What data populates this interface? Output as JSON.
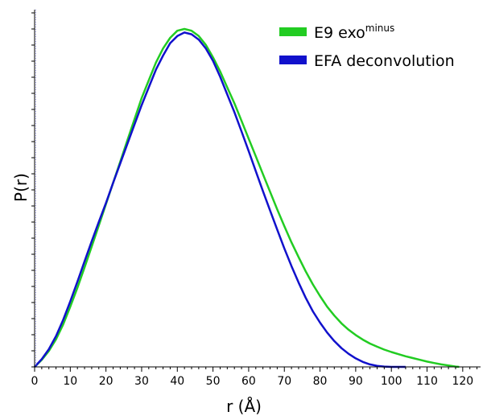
{
  "chart_data": {
    "type": "line",
    "title": "",
    "xlabel": "r (Å)",
    "ylabel": "P(r)",
    "xlim": [
      0,
      125
    ],
    "ylim": [
      0,
      1.05
    ],
    "x_ticks": [
      "0",
      "10",
      "20",
      "30",
      "40",
      "50",
      "60",
      "70",
      "80",
      "90",
      "100",
      "110",
      "120"
    ],
    "y_tick_labels_shown": false,
    "grid": false,
    "reference_line": {
      "x": 0,
      "style": "dotted",
      "color": "#9999ee"
    },
    "legend": {
      "position": "top-right"
    },
    "series": [
      {
        "name": "E9 exo",
        "name_sup": "minus",
        "color": "#22cc22",
        "x": [
          0,
          2,
          4,
          6,
          8,
          10,
          12,
          14,
          16,
          18,
          20,
          22,
          24,
          26,
          28,
          30,
          32,
          34,
          36,
          38,
          40,
          42,
          44,
          46,
          48,
          50,
          52,
          54,
          56,
          58,
          60,
          62,
          64,
          66,
          68,
          70,
          72,
          74,
          76,
          78,
          80,
          82,
          84,
          86,
          88,
          90,
          92,
          94,
          96,
          98,
          100,
          102,
          104,
          106,
          108,
          110,
          112,
          114,
          116,
          118,
          119
        ],
        "values": [
          0.0,
          0.02,
          0.045,
          0.078,
          0.12,
          0.17,
          0.224,
          0.281,
          0.34,
          0.4,
          0.46,
          0.52,
          0.58,
          0.64,
          0.7,
          0.76,
          0.81,
          0.86,
          0.9,
          0.93,
          0.95,
          0.955,
          0.95,
          0.935,
          0.91,
          0.875,
          0.835,
          0.79,
          0.745,
          0.695,
          0.645,
          0.595,
          0.545,
          0.495,
          0.445,
          0.398,
          0.352,
          0.31,
          0.27,
          0.233,
          0.2,
          0.17,
          0.145,
          0.123,
          0.105,
          0.09,
          0.077,
          0.066,
          0.057,
          0.049,
          0.042,
          0.036,
          0.03,
          0.025,
          0.02,
          0.015,
          0.011,
          0.007,
          0.004,
          0.001,
          0.0
        ]
      },
      {
        "name": "EFA deconvolution",
        "color": "#1111cc",
        "x": [
          0,
          2,
          4,
          6,
          8,
          10,
          12,
          14,
          16,
          18,
          20,
          22,
          24,
          26,
          28,
          30,
          32,
          34,
          36,
          38,
          40,
          42,
          44,
          46,
          48,
          50,
          52,
          54,
          56,
          58,
          60,
          62,
          64,
          66,
          68,
          70,
          72,
          74,
          76,
          78,
          80,
          82,
          84,
          86,
          88,
          90,
          92,
          94,
          96,
          98,
          100,
          102,
          104
        ],
        "values": [
          0.0,
          0.022,
          0.05,
          0.087,
          0.133,
          0.185,
          0.241,
          0.298,
          0.355,
          0.41,
          0.463,
          0.52,
          0.575,
          0.63,
          0.685,
          0.74,
          0.79,
          0.84,
          0.88,
          0.915,
          0.935,
          0.945,
          0.94,
          0.925,
          0.9,
          0.865,
          0.82,
          0.77,
          0.72,
          0.665,
          0.61,
          0.553,
          0.497,
          0.442,
          0.388,
          0.335,
          0.285,
          0.238,
          0.195,
          0.157,
          0.125,
          0.097,
          0.073,
          0.053,
          0.037,
          0.024,
          0.014,
          0.007,
          0.003,
          0.001,
          0.0,
          0.0,
          0.0
        ]
      }
    ]
  }
}
